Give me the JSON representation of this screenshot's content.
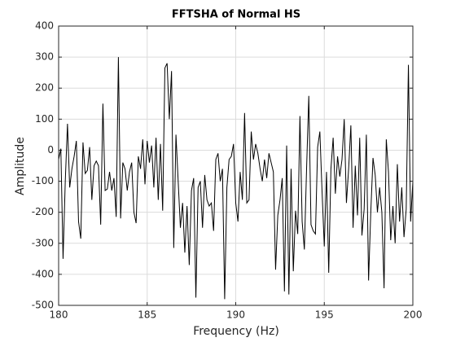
{
  "chart_data": {
    "type": "line",
    "title": "FFTSHA of Normal HS",
    "xlabel": "Frequency (Hz)",
    "ylabel": "Amplitude",
    "xlim": [
      180,
      200
    ],
    "xticks": [
      180,
      185,
      190,
      195,
      200
    ],
    "ylim": [
      -500,
      400
    ],
    "yticks": [
      -500,
      -400,
      -300,
      -200,
      -100,
      0,
      100,
      200,
      300,
      400
    ],
    "grid": true,
    "x": [
      180,
      180.125,
      180.25,
      180.375,
      180.5,
      180.625,
      180.75,
      180.875,
      181,
      181.125,
      181.25,
      181.375,
      181.5,
      181.625,
      181.75,
      181.875,
      182,
      182.125,
      182.25,
      182.375,
      182.5,
      182.625,
      182.75,
      182.875,
      183,
      183.125,
      183.25,
      183.375,
      183.5,
      183.625,
      183.75,
      183.875,
      184,
      184.125,
      184.25,
      184.375,
      184.5,
      184.625,
      184.75,
      184.875,
      185,
      185.125,
      185.25,
      185.375,
      185.5,
      185.625,
      185.75,
      185.875,
      186,
      186.125,
      186.25,
      186.375,
      186.5,
      186.625,
      186.75,
      186.875,
      187,
      187.125,
      187.25,
      187.375,
      187.5,
      187.625,
      187.75,
      187.875,
      188,
      188.125,
      188.25,
      188.375,
      188.5,
      188.625,
      188.75,
      188.875,
      189,
      189.125,
      189.25,
      189.375,
      189.5,
      189.625,
      189.75,
      189.875,
      190,
      190.125,
      190.25,
      190.375,
      190.5,
      190.625,
      190.75,
      190.875,
      191,
      191.125,
      191.25,
      191.375,
      191.5,
      191.625,
      191.75,
      191.875,
      192,
      192.125,
      192.25,
      192.375,
      192.5,
      192.625,
      192.75,
      192.875,
      193,
      193.125,
      193.25,
      193.375,
      193.5,
      193.625,
      193.75,
      193.875,
      194,
      194.125,
      194.25,
      194.375,
      194.5,
      194.625,
      194.75,
      194.875,
      195,
      195.125,
      195.25,
      195.375,
      195.5,
      195.625,
      195.75,
      195.875,
      196,
      196.125,
      196.25,
      196.375,
      196.5,
      196.625,
      196.75,
      196.875,
      197,
      197.125,
      197.25,
      197.375,
      197.5,
      197.625,
      197.75,
      197.875,
      198,
      198.125,
      198.25,
      198.375,
      198.5,
      198.625,
      198.75,
      198.875,
      199,
      199.125,
      199.25,
      199.375,
      199.5,
      199.625,
      199.75,
      199.875,
      200
    ],
    "series": [
      {
        "color": "#000000",
        "values": [
          -30,
          5,
          -350,
          -100,
          85,
          -120,
          -60,
          -20,
          30,
          -230,
          -285,
          25,
          -75,
          -65,
          10,
          -160,
          -50,
          -35,
          -50,
          -240,
          150,
          -130,
          -125,
          -70,
          -130,
          -90,
          -215,
          300,
          -220,
          -40,
          -60,
          -130,
          -70,
          -40,
          -200,
          -235,
          -20,
          -60,
          35,
          -110,
          30,
          -40,
          15,
          -120,
          40,
          -160,
          20,
          -195,
          265,
          280,
          100,
          255,
          -315,
          50,
          -100,
          -250,
          -170,
          -330,
          -180,
          -370,
          -130,
          -90,
          -475,
          -120,
          -100,
          -250,
          -80,
          -160,
          -180,
          -170,
          -260,
          -30,
          -10,
          -100,
          -60,
          -480,
          -120,
          -30,
          -20,
          20,
          -170,
          -230,
          -70,
          -160,
          120,
          -170,
          -160,
          60,
          -30,
          20,
          -10,
          -60,
          -100,
          -30,
          -90,
          -10,
          -40,
          -70,
          -385,
          -210,
          -160,
          -90,
          -455,
          15,
          -465,
          -60,
          -390,
          -195,
          -270,
          110,
          -230,
          -320,
          -60,
          175,
          -240,
          -260,
          -270,
          10,
          60,
          -135,
          -310,
          -70,
          -395,
          -60,
          40,
          -140,
          -20,
          -85,
          -30,
          100,
          -170,
          -60,
          80,
          -250,
          -50,
          -210,
          40,
          -275,
          -190,
          50,
          -420,
          -200,
          -25,
          -80,
          -200,
          -120,
          -200,
          -445,
          35,
          -70,
          -290,
          -180,
          -300,
          -45,
          -230,
          -120,
          -280,
          -190,
          275,
          -230,
          -100
        ]
      }
    ]
  }
}
